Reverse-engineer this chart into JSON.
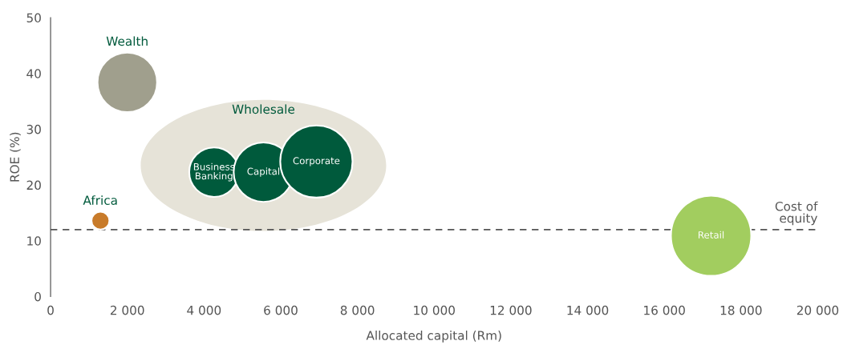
{
  "chart_data": {
    "type": "bubble",
    "xlabel": "Allocated capital (Rm)",
    "ylabel": "ROE (%)",
    "xlim": [
      0,
      20000
    ],
    "ylim": [
      0,
      50
    ],
    "xticks": [
      0,
      {
        "value": 2000,
        "label": "2 000"
      },
      {
        "value": 4000,
        "label": "4 000"
      },
      {
        "value": 6000,
        "label": "6 000"
      },
      {
        "value": 8000,
        "label": "8 000"
      },
      {
        "value": 10000,
        "label": "10 000"
      },
      {
        "value": 12000,
        "label": "12 000"
      },
      {
        "value": 14000,
        "label": "14 000"
      },
      {
        "value": 16000,
        "label": "16 000"
      },
      {
        "value": 18000,
        "label": "18 000"
      },
      {
        "value": 20000,
        "label": "20 000"
      }
    ],
    "yticks": [
      0,
      10,
      20,
      30,
      40,
      50
    ],
    "grid": false,
    "series": [
      {
        "color": "#a09f8d",
        "x": [
          2000
        ],
        "values": [
          38.4
        ],
        "sizes": [
          0.55
        ]
      },
      {
        "color": "#c87b2a",
        "x": [
          1300
        ],
        "values": [
          13.6
        ],
        "sizes": [
          0.05
        ]
      },
      {
        "name": "Business\nBanking",
        "color": "#005a3c",
        "x": [
          4260
        ],
        "values": [
          22.3
        ],
        "sizes": [
          0.38
        ]
      },
      {
        "name": "Capital",
        "color": "#005a3c",
        "x": [
          5550
        ],
        "values": [
          22.3
        ],
        "sizes": [
          0.55
        ]
      },
      {
        "name": "Corporate",
        "color": "#005a3c",
        "x": [
          6930
        ],
        "values": [
          24.2
        ],
        "sizes": [
          0.81
        ]
      },
      {
        "name": "Retail",
        "color": "#a2cd5f",
        "x": [
          17220
        ],
        "values": [
          10.9
        ],
        "sizes": [
          1
        ]
      }
    ],
    "annotations": [
      "Wealth",
      "Africa",
      "Wholesale"
    ],
    "ref_lines": [
      {
        "axis": "y",
        "value": 12,
        "label": "Cost of\nequity",
        "color": "#555555",
        "line_style": "dashed"
      }
    ]
  }
}
